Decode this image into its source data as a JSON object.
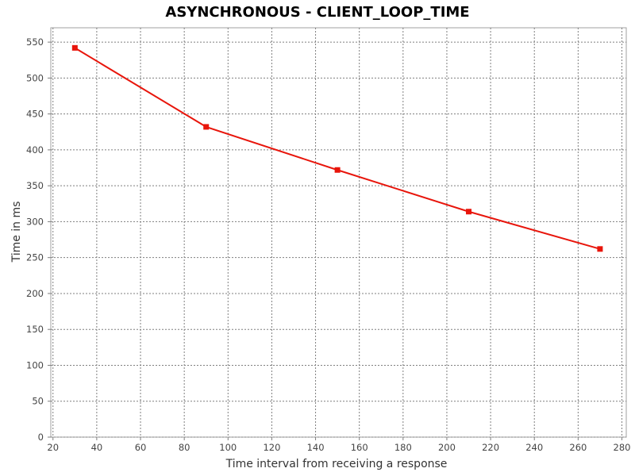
{
  "chart_data": {
    "type": "line",
    "title": "ASYNCHRONOUS - CLIENT_LOOP_TIME",
    "xlabel": "Time interval from receiving a response",
    "ylabel": "Time in ms",
    "xlim": [
      19,
      282
    ],
    "ylim": [
      0,
      570
    ],
    "xticks": [
      20,
      40,
      60,
      80,
      100,
      120,
      140,
      160,
      180,
      200,
      220,
      240,
      260,
      280
    ],
    "yticks": [
      0,
      50,
      100,
      150,
      200,
      250,
      300,
      350,
      400,
      450,
      500,
      550
    ],
    "grid": true,
    "series": [
      {
        "color": "#e8150b",
        "marker": "square",
        "x": [
          30,
          90,
          150,
          210,
          270
        ],
        "y": [
          542,
          432,
          372,
          314,
          262
        ]
      }
    ]
  }
}
